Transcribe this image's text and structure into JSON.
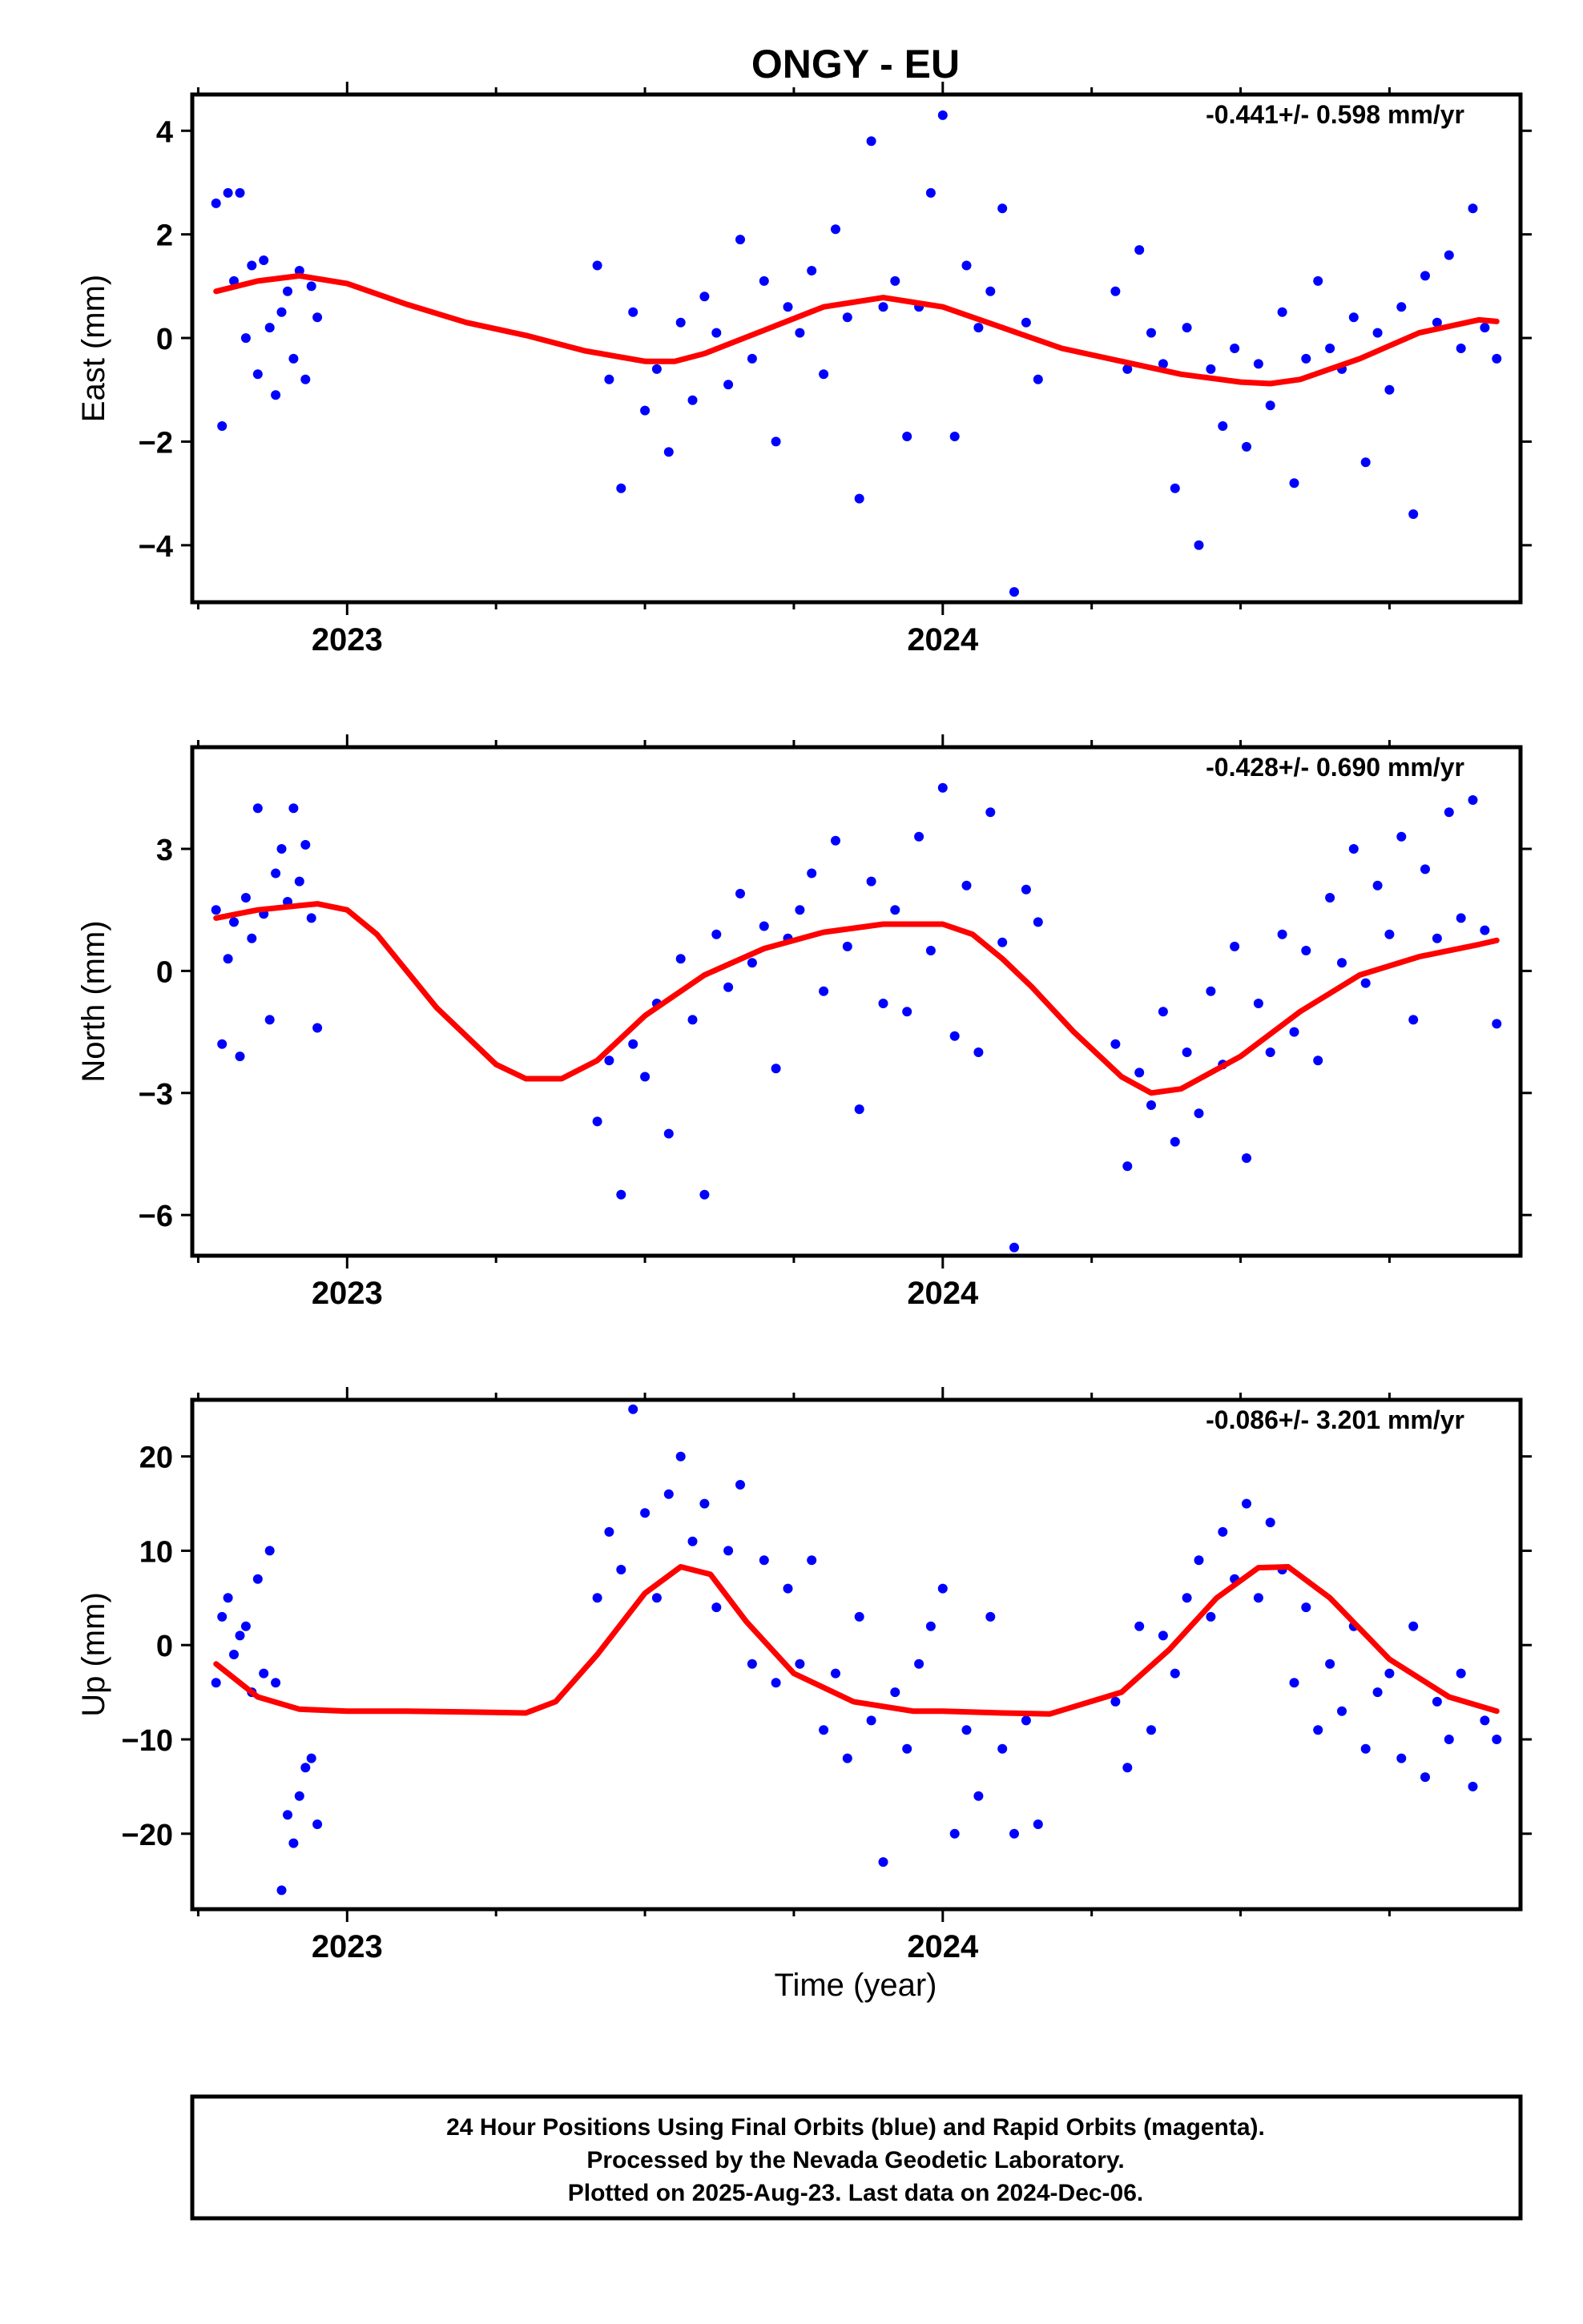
{
  "title": "ONGY - EU",
  "colors": {
    "final_orbits": "#0000ff",
    "model_fit": "#ff0000",
    "frame": "#000000"
  },
  "chart_data": [
    {
      "type": "scatter",
      "panel": "east",
      "ylabel": "East (mm)",
      "xlabel": "",
      "rate_label": "-0.441+/- 0.598 mm/yr",
      "xlim": [
        2022.74,
        2024.97
      ],
      "ylim": [
        -5.1,
        4.7
      ],
      "yticks": [
        -4,
        -2,
        0,
        2,
        4
      ],
      "xtick_labels": [
        {
          "x": 2023,
          "label": "2023"
        },
        {
          "x": 2024,
          "label": "2024"
        }
      ],
      "grid": false,
      "series": [
        {
          "role": "daily positions",
          "style": "points",
          "color": "#0000ff",
          "x": [
            2022.78,
            2022.79,
            2022.8,
            2022.81,
            2022.82,
            2022.83,
            2022.84,
            2022.85,
            2022.86,
            2022.87,
            2022.88,
            2022.89,
            2022.9,
            2022.91,
            2022.92,
            2022.93,
            2022.94,
            2022.95,
            2023.42,
            2023.44,
            2023.46,
            2023.48,
            2023.5,
            2023.52,
            2023.54,
            2023.56,
            2023.58,
            2023.6,
            2023.62,
            2023.64,
            2023.66,
            2023.68,
            2023.7,
            2023.72,
            2023.74,
            2023.76,
            2023.78,
            2023.8,
            2023.82,
            2023.84,
            2023.86,
            2023.88,
            2023.9,
            2023.92,
            2023.94,
            2023.96,
            2023.98,
            2024.0,
            2024.02,
            2024.04,
            2024.06,
            2024.08,
            2024.1,
            2024.12,
            2024.14,
            2024.16,
            2024.29,
            2024.31,
            2024.33,
            2024.35,
            2024.37,
            2024.39,
            2024.41,
            2024.43,
            2024.45,
            2024.47,
            2024.49,
            2024.51,
            2024.53,
            2024.55,
            2024.57,
            2024.59,
            2024.61,
            2024.63,
            2024.65,
            2024.67,
            2024.69,
            2024.71,
            2024.73,
            2024.75,
            2024.77,
            2024.79,
            2024.81,
            2024.83,
            2024.85,
            2024.87,
            2024.89,
            2024.91,
            2024.93
          ],
          "y": [
            2.6,
            -1.7,
            2.8,
            1.1,
            2.8,
            0.0,
            1.4,
            -0.7,
            1.5,
            0.2,
            -1.1,
            0.5,
            0.9,
            -0.4,
            1.3,
            -0.8,
            1.0,
            0.4,
            1.4,
            -0.8,
            -2.9,
            0.5,
            -1.4,
            -0.6,
            -2.2,
            0.3,
            -1.2,
            0.8,
            0.1,
            -0.9,
            1.9,
            -0.4,
            1.1,
            -2.0,
            0.6,
            0.1,
            1.3,
            -0.7,
            2.1,
            0.4,
            -3.1,
            3.8,
            0.6,
            1.1,
            -1.9,
            0.6,
            2.8,
            4.3,
            -1.9,
            1.4,
            0.2,
            0.9,
            2.5,
            -4.9,
            0.3,
            -0.8,
            0.9,
            -0.6,
            1.7,
            0.1,
            -0.5,
            -2.9,
            0.2,
            -4.0,
            -0.6,
            -1.7,
            -0.2,
            -2.1,
            -0.5,
            -1.3,
            0.5,
            -2.8,
            -0.4,
            1.1,
            -0.2,
            -0.6,
            0.4,
            -2.4,
            0.1,
            -1.0,
            0.6,
            -3.4,
            1.2,
            0.3,
            1.6,
            -0.2,
            2.5,
            0.2,
            -0.4
          ]
        },
        {
          "role": "seasonal model",
          "style": "line",
          "color": "#ff0000",
          "x": [
            2022.78,
            2022.85,
            2022.92,
            2023.0,
            2023.1,
            2023.2,
            2023.3,
            2023.4,
            2023.5,
            2023.55,
            2023.6,
            2023.7,
            2023.8,
            2023.9,
            2024.0,
            2024.1,
            2024.2,
            2024.3,
            2024.4,
            2024.5,
            2024.55,
            2024.6,
            2024.7,
            2024.8,
            2024.9,
            2024.93
          ],
          "y": [
            0.9,
            1.1,
            1.2,
            1.05,
            0.65,
            0.3,
            0.05,
            -0.25,
            -0.45,
            -0.45,
            -0.3,
            0.15,
            0.6,
            0.78,
            0.6,
            0.2,
            -0.2,
            -0.45,
            -0.7,
            -0.85,
            -0.88,
            -0.8,
            -0.4,
            0.1,
            0.35,
            0.32
          ]
        }
      ]
    },
    {
      "type": "scatter",
      "panel": "north",
      "ylabel": "North (mm)",
      "xlabel": "",
      "rate_label": "-0.428+/- 0.690 mm/yr",
      "xlim": [
        2022.74,
        2024.97
      ],
      "ylim": [
        -7.0,
        5.5
      ],
      "yticks": [
        -6,
        -3,
        0,
        3
      ],
      "xtick_labels": [
        {
          "x": 2023,
          "label": "2023"
        },
        {
          "x": 2024,
          "label": "2024"
        }
      ],
      "grid": false,
      "series": [
        {
          "role": "daily positions",
          "style": "points",
          "color": "#0000ff",
          "x": [
            2022.78,
            2022.79,
            2022.8,
            2022.81,
            2022.82,
            2022.83,
            2022.84,
            2022.85,
            2022.86,
            2022.87,
            2022.88,
            2022.89,
            2022.9,
            2022.91,
            2022.92,
            2022.93,
            2022.94,
            2022.95,
            2023.42,
            2023.44,
            2023.46,
            2023.48,
            2023.5,
            2023.52,
            2023.54,
            2023.56,
            2023.58,
            2023.6,
            2023.62,
            2023.64,
            2023.66,
            2023.68,
            2023.7,
            2023.72,
            2023.74,
            2023.76,
            2023.78,
            2023.8,
            2023.82,
            2023.84,
            2023.86,
            2023.88,
            2023.9,
            2023.92,
            2023.94,
            2023.96,
            2023.98,
            2024.0,
            2024.02,
            2024.04,
            2024.06,
            2024.08,
            2024.1,
            2024.12,
            2024.14,
            2024.16,
            2024.29,
            2024.31,
            2024.33,
            2024.35,
            2024.37,
            2024.39,
            2024.41,
            2024.43,
            2024.45,
            2024.47,
            2024.49,
            2024.51,
            2024.53,
            2024.55,
            2024.57,
            2024.59,
            2024.61,
            2024.63,
            2024.65,
            2024.67,
            2024.69,
            2024.71,
            2024.73,
            2024.75,
            2024.77,
            2024.79,
            2024.81,
            2024.83,
            2024.85,
            2024.87,
            2024.89,
            2024.91,
            2024.93
          ],
          "y": [
            1.5,
            -1.8,
            0.3,
            1.2,
            -2.1,
            1.8,
            0.8,
            4.0,
            1.4,
            -1.2,
            2.4,
            3.0,
            1.7,
            4.0,
            2.2,
            3.1,
            1.3,
            -1.4,
            -3.7,
            -2.2,
            -5.5,
            -1.8,
            -2.6,
            -0.8,
            -4.0,
            0.3,
            -1.2,
            -5.5,
            0.9,
            -0.4,
            1.9,
            0.2,
            1.1,
            -2.4,
            0.8,
            1.5,
            2.4,
            -0.5,
            3.2,
            0.6,
            -3.4,
            2.2,
            -0.8,
            1.5,
            -1.0,
            3.3,
            0.5,
            4.5,
            -1.6,
            2.1,
            -2.0,
            3.9,
            0.7,
            -6.8,
            2.0,
            1.2,
            -1.8,
            -4.8,
            -2.5,
            -3.3,
            -1.0,
            -4.2,
            -2.0,
            -3.5,
            -0.5,
            -2.3,
            0.6,
            -4.6,
            -0.8,
            -2.0,
            0.9,
            -1.5,
            0.5,
            -2.2,
            1.8,
            0.2,
            3.0,
            -0.3,
            2.1,
            0.9,
            3.3,
            -1.2,
            2.5,
            0.8,
            3.9,
            1.3,
            4.2,
            1.0,
            -1.3
          ]
        },
        {
          "role": "seasonal model",
          "style": "line",
          "color": "#ff0000",
          "x": [
            2022.78,
            2022.85,
            2022.95,
            2023.0,
            2023.05,
            2023.15,
            2023.25,
            2023.3,
            2023.36,
            2023.42,
            2023.5,
            2023.6,
            2023.7,
            2023.8,
            2023.9,
            2024.0,
            2024.05,
            2024.1,
            2024.15,
            2024.22,
            2024.3,
            2024.35,
            2024.4,
            2024.5,
            2024.6,
            2024.7,
            2024.8,
            2024.9,
            2024.93
          ],
          "y": [
            1.3,
            1.5,
            1.65,
            1.5,
            0.9,
            -0.9,
            -2.3,
            -2.65,
            -2.65,
            -2.2,
            -1.1,
            -0.1,
            0.55,
            0.95,
            1.15,
            1.15,
            0.9,
            0.3,
            -0.4,
            -1.5,
            -2.6,
            -3.0,
            -2.9,
            -2.1,
            -1.0,
            -0.1,
            0.35,
            0.65,
            0.75
          ]
        }
      ]
    },
    {
      "type": "scatter",
      "panel": "up",
      "ylabel": "Up (mm)",
      "xlabel": "Time (year)",
      "rate_label": "-0.086+/- 3.201 mm/yr",
      "xlim": [
        2022.74,
        2024.97
      ],
      "ylim": [
        -28,
        26
      ],
      "yticks": [
        -20,
        -10,
        0,
        10,
        20
      ],
      "xtick_labels": [
        {
          "x": 2023,
          "label": "2023"
        },
        {
          "x": 2024,
          "label": "2024"
        }
      ],
      "grid": false,
      "series": [
        {
          "role": "daily positions",
          "style": "points",
          "color": "#0000ff",
          "x": [
            2022.78,
            2022.79,
            2022.8,
            2022.81,
            2022.82,
            2022.83,
            2022.84,
            2022.85,
            2022.86,
            2022.87,
            2022.88,
            2022.89,
            2022.9,
            2022.91,
            2022.92,
            2022.93,
            2022.94,
            2022.95,
            2023.42,
            2023.44,
            2023.46,
            2023.48,
            2023.5,
            2023.52,
            2023.54,
            2023.56,
            2023.58,
            2023.6,
            2023.62,
            2023.64,
            2023.66,
            2023.68,
            2023.7,
            2023.72,
            2023.74,
            2023.76,
            2023.78,
            2023.8,
            2023.82,
            2023.84,
            2023.86,
            2023.88,
            2023.9,
            2023.92,
            2023.94,
            2023.96,
            2023.98,
            2024.0,
            2024.02,
            2024.04,
            2024.06,
            2024.08,
            2024.1,
            2024.12,
            2024.14,
            2024.16,
            2024.29,
            2024.31,
            2024.33,
            2024.35,
            2024.37,
            2024.39,
            2024.41,
            2024.43,
            2024.45,
            2024.47,
            2024.49,
            2024.51,
            2024.53,
            2024.55,
            2024.57,
            2024.59,
            2024.61,
            2024.63,
            2024.65,
            2024.67,
            2024.69,
            2024.71,
            2024.73,
            2024.75,
            2024.77,
            2024.79,
            2024.81,
            2024.83,
            2024.85,
            2024.87,
            2024.89,
            2024.91,
            2024.93
          ],
          "y": [
            -4,
            3,
            5,
            -1,
            1,
            2,
            -5,
            7,
            -3,
            10,
            -4,
            -26,
            -18,
            -21,
            -16,
            -13,
            -12,
            -19,
            5,
            12,
            8,
            25,
            14,
            5,
            16,
            20,
            11,
            15,
            4,
            10,
            17,
            -2,
            9,
            -4,
            6,
            -2,
            9,
            -9,
            -3,
            -12,
            3,
            -8,
            -23,
            -5,
            -11,
            -2,
            2,
            6,
            -20,
            -9,
            -16,
            3,
            -11,
            -20,
            -8,
            -19,
            -6,
            -13,
            2,
            -9,
            1,
            -3,
            5,
            9,
            3,
            12,
            7,
            15,
            5,
            13,
            8,
            -4,
            4,
            -9,
            -2,
            -7,
            2,
            -11,
            -5,
            -3,
            -12,
            2,
            -14,
            -6,
            -10,
            -3,
            -15,
            -8,
            -10
          ]
        },
        {
          "role": "seasonal model",
          "style": "line",
          "color": "#ff0000",
          "x": [
            2022.78,
            2022.85,
            2022.92,
            2023.0,
            2023.1,
            2023.2,
            2023.3,
            2023.35,
            2023.42,
            2023.5,
            2023.56,
            2023.61,
            2023.67,
            2023.75,
            2023.85,
            2023.95,
            2024.0,
            2024.1,
            2024.18,
            2024.3,
            2024.38,
            2024.46,
            2024.53,
            2024.58,
            2024.65,
            2024.75,
            2024.85,
            2024.93
          ],
          "y": [
            -2,
            -5.5,
            -6.8,
            -7,
            -7,
            -7.1,
            -7.2,
            -6,
            -1,
            5.5,
            8.3,
            7.5,
            2.5,
            -3,
            -6,
            -7,
            -7,
            -7.2,
            -7.3,
            -5,
            -0.5,
            5,
            8.2,
            8.3,
            5,
            -1.5,
            -5.5,
            -7
          ]
        }
      ]
    }
  ],
  "caption": {
    "line1": "24 Hour Positions Using Final Orbits (blue) and Rapid Orbits (magenta).",
    "line2": "Processed by the Nevada Geodetic Laboratory.",
    "line3": "Plotted on 2025-Aug-23. Last data on 2024-Dec-06."
  }
}
